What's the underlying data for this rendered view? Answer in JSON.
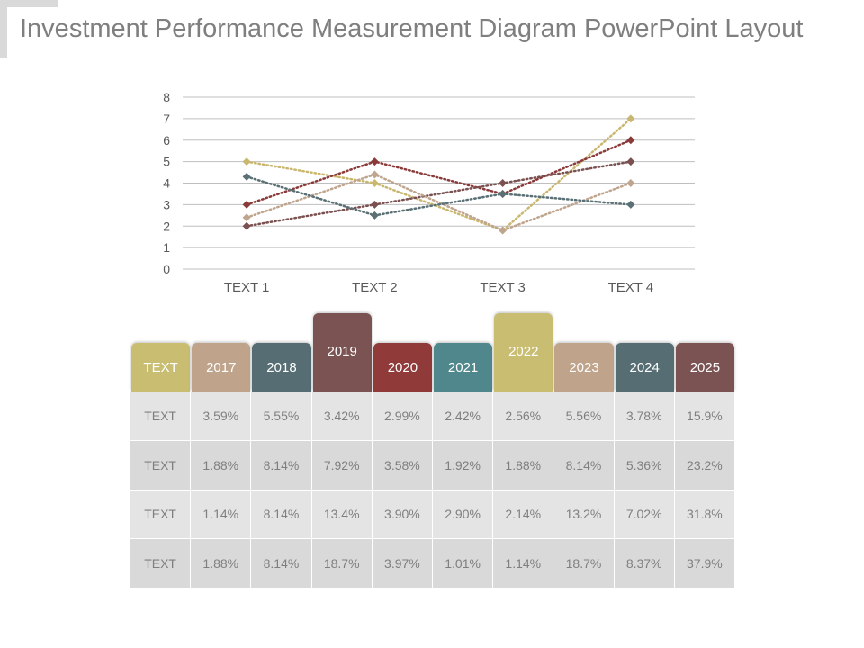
{
  "title": "Investment Performance Measurement Diagram PowerPoint Layout",
  "chart_data": {
    "type": "line",
    "line_style": "dotted",
    "marker": "diamond",
    "grid": true,
    "legend": "none",
    "categories": [
      "TEXT 1",
      "TEXT 2",
      "TEXT 3",
      "TEXT 4"
    ],
    "ylim": [
      0,
      8
    ],
    "yticks": [
      0,
      1,
      2,
      3,
      4,
      5,
      6,
      7,
      8
    ],
    "series": [
      {
        "color": "#c9b770",
        "values": [
          5,
          4,
          1.8,
          7
        ]
      },
      {
        "color": "#8b3a3a",
        "values": [
          3,
          5,
          3.5,
          6
        ]
      },
      {
        "color": "#7a5050",
        "values": [
          2,
          3,
          4,
          5
        ]
      },
      {
        "color": "#c0a58e",
        "values": [
          2.4,
          4.4,
          1.8,
          4
        ]
      },
      {
        "color": "#5a7075",
        "values": [
          4.3,
          2.5,
          3.5,
          3
        ]
      }
    ]
  },
  "table": {
    "columns": [
      {
        "label": "TEXT",
        "color": "#c9bd72"
      },
      {
        "label": "2017",
        "color": "#bfa48b"
      },
      {
        "label": "2018",
        "color": "#566e73"
      },
      {
        "label": "2019",
        "color": "#7b5353",
        "raised": true
      },
      {
        "label": "2020",
        "color": "#903a3a"
      },
      {
        "label": "2021",
        "color": "#4f878c"
      },
      {
        "label": "2022",
        "color": "#c9bd72",
        "raised": true
      },
      {
        "label": "2023",
        "color": "#bfa48b"
      },
      {
        "label": "2024",
        "color": "#566e73"
      },
      {
        "label": "2025",
        "color": "#7b5353"
      }
    ],
    "rows": [
      [
        "TEXT",
        "3.59%",
        "5.55%",
        "3.42%",
        "2.99%",
        "2.42%",
        "2.56%",
        "5.56%",
        "3.78%",
        "15.9%"
      ],
      [
        "TEXT",
        "1.88%",
        "8.14%",
        "7.92%",
        "3.58%",
        "1.92%",
        "1.88%",
        "8.14%",
        "5.36%",
        "23.2%"
      ],
      [
        "TEXT",
        "1.14%",
        "8.14%",
        "13.4%",
        "3.90%",
        "2.90%",
        "2.14%",
        "13.2%",
        "7.02%",
        "31.8%"
      ],
      [
        "TEXT",
        "1.88%",
        "8.14%",
        "18.7%",
        "3.97%",
        "1.01%",
        "1.14%",
        "18.7%",
        "8.37%",
        "37.9%"
      ]
    ]
  }
}
